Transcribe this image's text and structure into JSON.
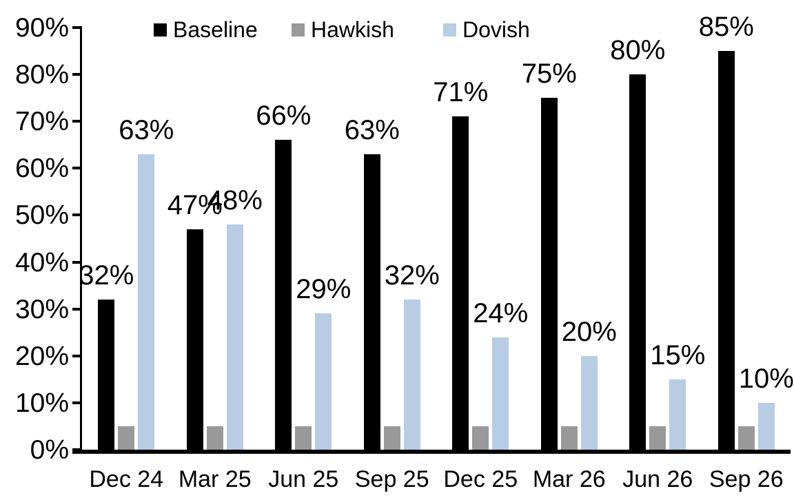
{
  "chart_data": {
    "type": "bar",
    "title": "",
    "xlabel": "",
    "ylabel": "",
    "categories": [
      "Dec 24",
      "Mar 25",
      "Jun 25",
      "Sep 25",
      "Dec 25",
      "Mar 26",
      "Jun 26",
      "Sep 26"
    ],
    "series": [
      {
        "name": "Baseline",
        "color": "#000000",
        "values": [
          32,
          47,
          66,
          63,
          71,
          75,
          80,
          85
        ],
        "labels": [
          "32%",
          "47%",
          "66%",
          "63%",
          "71%",
          "75%",
          "80%",
          "85%"
        ],
        "show_labels": true
      },
      {
        "name": "Hawkish",
        "color": "#999999",
        "values": [
          5,
          5,
          5,
          5,
          5,
          5,
          5,
          5
        ],
        "labels": [
          "",
          "",
          "",
          "",
          "",
          "",
          "",
          ""
        ],
        "show_labels": false
      },
      {
        "name": "Dovish",
        "color": "#B8CCE4",
        "values": [
          63,
          48,
          29,
          32,
          24,
          20,
          15,
          10
        ],
        "labels": [
          "63%",
          "48%",
          "29%",
          "32%",
          "24%",
          "20%",
          "15%",
          "10%"
        ],
        "show_labels": true
      }
    ],
    "ylim": [
      0,
      90
    ],
    "ytick_labels": [
      "0%",
      "10%",
      "20%",
      "30%",
      "40%",
      "50%",
      "60%",
      "70%",
      "80%",
      "90%"
    ],
    "ytick_values": [
      0,
      10,
      20,
      30,
      40,
      50,
      60,
      70,
      80,
      90
    ],
    "grid": false,
    "legend_position": "top",
    "legend_entries": [
      "Baseline",
      "Hawkish",
      "Dovish"
    ]
  }
}
